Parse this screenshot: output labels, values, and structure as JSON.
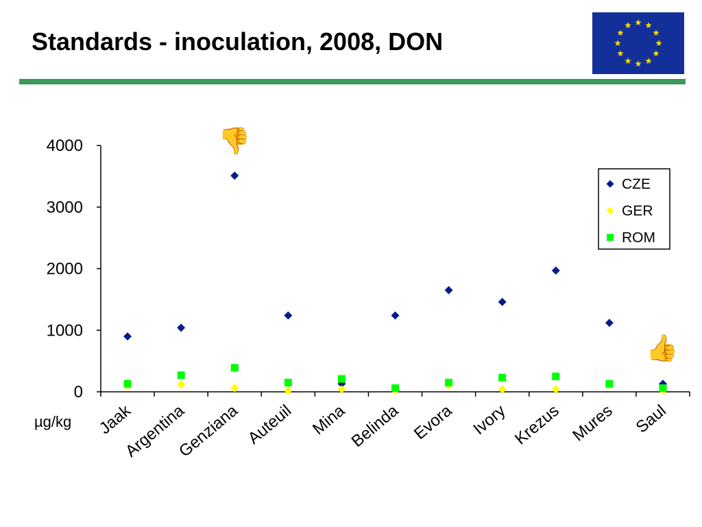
{
  "title": "Standards - inoculation, 2008, DON",
  "colors": {
    "rule": "#3a9a5a",
    "flag_bg": "#13309a",
    "flag_star": "#ffdd00"
  },
  "icons": {
    "thumbs_down": "thumbs-down-icon",
    "thumbs_up": "thumbs-up-icon",
    "flag": "eu-flag-icon"
  },
  "thumb_down_glyph": "👎",
  "thumb_up_glyph": "👍",
  "chart_data": {
    "type": "scatter",
    "title": "",
    "ylabel": "µg/kg",
    "xlabel": "",
    "categories": [
      "Jaak",
      "Argentina",
      "Genziana",
      "Auteuil",
      "Mina",
      "Belinda",
      "Evora",
      "Ivory",
      "Krezus",
      "Mures",
      "Saul"
    ],
    "yticks": [
      "0",
      "1000",
      "2000",
      "3000",
      "4000"
    ],
    "ylim": [
      0,
      4000
    ],
    "grid": false,
    "legend_position": "top-right",
    "series": [
      {
        "name": "CZE",
        "marker": "diamond",
        "color": "#0a1a8a",
        "values": [
          900,
          1040,
          3510,
          1240,
          130,
          1240,
          1650,
          1460,
          1970,
          1120,
          130
        ]
      },
      {
        "name": "GER",
        "marker": "diamond",
        "color": "#ffff00",
        "values": [
          100,
          120,
          60,
          20,
          40,
          20,
          110,
          40,
          40,
          110,
          20
        ]
      },
      {
        "name": "ROM",
        "marker": "square",
        "color": "#00ff00",
        "values": [
          130,
          270,
          390,
          150,
          210,
          60,
          150,
          230,
          250,
          130,
          60
        ]
      }
    ]
  }
}
